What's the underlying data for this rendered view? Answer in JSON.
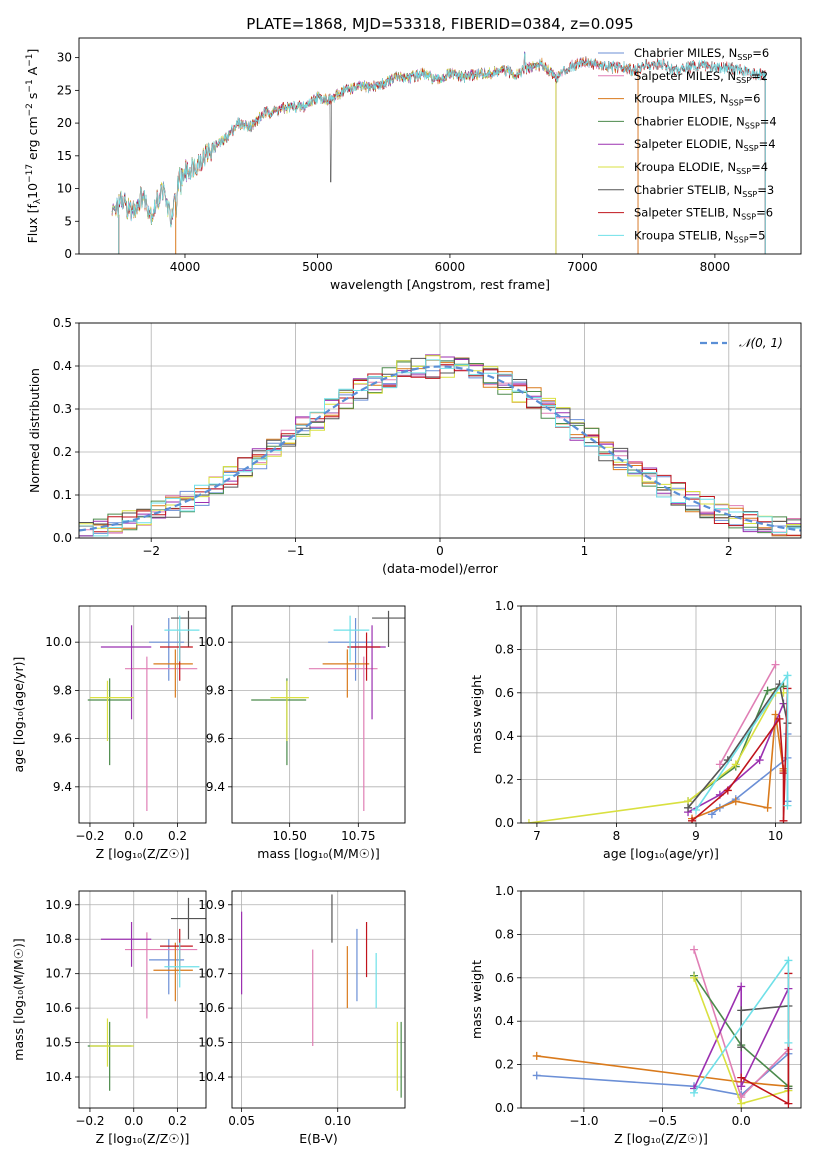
{
  "figure": {
    "title": "PLATE=1868, MJD=53318, FIBERID=0384, z=0.095"
  },
  "models": [
    {
      "name": "Chabrier MILES",
      "nssp": "6",
      "color": "#6b8fd6"
    },
    {
      "name": "Salpeter MILES",
      "nssp": "2",
      "color": "#e07fb5"
    },
    {
      "name": "Kroupa MILES",
      "nssp": "6",
      "color": "#d97a1c"
    },
    {
      "name": "Chabrier ELODIE",
      "nssp": "4",
      "color": "#4b8a4b"
    },
    {
      "name": "Salpeter ELODIE",
      "nssp": "4",
      "color": "#9b30b0"
    },
    {
      "name": "Kroupa ELODIE",
      "nssp": "4",
      "color": "#d9e040"
    },
    {
      "name": "Chabrier STELIB",
      "nssp": "3",
      "color": "#555555"
    },
    {
      "name": "Salpeter STELIB",
      "nssp": "6",
      "color": "#c0141c"
    },
    {
      "name": "Kroupa STELIB",
      "nssp": "5",
      "color": "#6fe0e8"
    }
  ],
  "chart_data": [
    {
      "id": "spectrum",
      "type": "line",
      "xlabel": "wavelength [Angstrom, rest frame]",
      "ylabel": "Flux [f",
      "xlim": [
        3200,
        8650
      ],
      "ylim": [
        0,
        33
      ],
      "xticks": [
        4000,
        5000,
        6000,
        7000,
        8000
      ],
      "yticks": [
        0,
        5,
        10,
        15,
        20,
        25,
        30
      ],
      "grid": false,
      "legend_position": "top-right",
      "x": [
        3450,
        3520,
        3600,
        3680,
        3750,
        3830,
        3900,
        3950,
        4000,
        4100,
        4200,
        4300,
        4400,
        4500,
        4600,
        4700,
        4800,
        4900,
        5000,
        5100,
        5200,
        5300,
        5400,
        5500,
        5600,
        5700,
        5800,
        5900,
        6000,
        6100,
        6200,
        6300,
        6400,
        6500,
        6600,
        6700,
        6800,
        6900,
        7000,
        7100,
        7200,
        7300,
        7400,
        7500,
        7600,
        7700,
        7800,
        7900,
        8000,
        8100,
        8200,
        8300,
        8400
      ],
      "flux": [
        6.0,
        8.0,
        6.5,
        9.0,
        6.0,
        10.0,
        5.0,
        11.5,
        12.5,
        14.0,
        16.0,
        17.5,
        20.0,
        19.5,
        21.5,
        22.0,
        22.5,
        22.5,
        24.0,
        23.5,
        25.0,
        25.5,
        25.5,
        26.0,
        27.0,
        27.0,
        27.5,
        26.5,
        27.5,
        27.0,
        27.5,
        27.5,
        28.0,
        27.5,
        28.5,
        29.0,
        27.0,
        28.5,
        29.5,
        29.0,
        28.5,
        28.5,
        28.0,
        29.0,
        29.0,
        28.0,
        28.5,
        29.0,
        28.5,
        28.5,
        28.0,
        27.5,
        27.5
      ],
      "model_end": {
        "MILES": 7420,
        "ELODIE": 6800,
        "STELIB": 8380
      }
    },
    {
      "id": "residuals",
      "type": "bar",
      "xlabel": "(data-model)/error",
      "ylabel": "Normed distribution",
      "xlim": [
        -2.5,
        2.5
      ],
      "ylim": [
        0,
        0.5
      ],
      "xticks": [
        -2,
        -1,
        0,
        1,
        2
      ],
      "yticks": [
        0.0,
        0.1,
        0.2,
        0.3,
        0.4,
        0.5
      ],
      "grid": true,
      "legend_position": "top-right",
      "legend_label": "𝒩(0, 1)",
      "bin_edges_start": -2.5,
      "bin_width": 0.1
    },
    {
      "id": "age-vs-Z",
      "type": "scatter",
      "xlabel": "Z [log₁₀(Z/Z☉)]",
      "ylabel": "age [log₁₀(age/yr)]",
      "xlim": [
        -0.25,
        0.33
      ],
      "ylim": [
        9.25,
        10.15
      ],
      "xticks": [
        -0.2,
        0.0,
        0.2
      ],
      "yticks": [
        9.4,
        9.6,
        9.8,
        10.0
      ],
      "grid": true,
      "points": [
        {
          "x": 0.16,
          "xerr": [
            0.09,
            0.07
          ],
          "y": 10.0,
          "yerr": [
            0.16,
            0.1
          ],
          "model": 0
        },
        {
          "x": 0.06,
          "xerr": [
            0.1,
            0.23
          ],
          "y": 9.89,
          "yerr": [
            0.59,
            0.05
          ],
          "model": 1
        },
        {
          "x": 0.19,
          "xerr": [
            0.1,
            0.08
          ],
          "y": 9.91,
          "yerr": [
            0.14,
            0.06
          ],
          "model": 2
        },
        {
          "x": -0.11,
          "xerr": [
            0.1,
            0.1
          ],
          "y": 9.76,
          "yerr": [
            0.27,
            0.09
          ],
          "model": 3
        },
        {
          "x": -0.01,
          "xerr": [
            0.14,
            0.09
          ],
          "y": 9.98,
          "yerr": [
            0.3,
            0.09
          ],
          "model": 4
        },
        {
          "x": -0.12,
          "xerr": [
            0.08,
            0.12
          ],
          "y": 9.77,
          "yerr": [
            0.18,
            0.07
          ],
          "model": 5
        },
        {
          "x": 0.25,
          "xerr": [
            0.08,
            0.1
          ],
          "y": 10.1,
          "yerr": [
            0.12,
            0.03
          ],
          "model": 6
        },
        {
          "x": 0.21,
          "xerr": [
            0.09,
            0.06
          ],
          "y": 9.98,
          "yerr": [
            0.14,
            0.06
          ],
          "model": 7
        },
        {
          "x": 0.21,
          "xerr": [
            0.07,
            0.09
          ],
          "y": 10.05,
          "yerr": [
            0.13,
            0.06
          ],
          "model": 8
        }
      ]
    },
    {
      "id": "age-vs-mass",
      "type": "scatter",
      "xlabel": "mass [log₁₀(M/M☉)]",
      "ylabel": "",
      "xlim": [
        10.29,
        10.92
      ],
      "ylim": [
        9.25,
        10.15
      ],
      "xticks": [
        10.5,
        10.75
      ],
      "yticks": [
        9.4,
        9.6,
        9.8,
        10.0
      ],
      "grid": true,
      "points": [
        {
          "x": 10.74,
          "xerr": [
            0.1,
            0.06
          ],
          "y": 10.0,
          "yerr": [
            0.16,
            0.1
          ],
          "model": 0
        },
        {
          "x": 10.77,
          "xerr": [
            0.2,
            0.05
          ],
          "y": 9.89,
          "yerr": [
            0.59,
            0.05
          ],
          "model": 1
        },
        {
          "x": 10.71,
          "xerr": [
            0.09,
            0.08
          ],
          "y": 9.91,
          "yerr": [
            0.14,
            0.06
          ],
          "model": 2
        },
        {
          "x": 10.49,
          "xerr": [
            0.13,
            0.07
          ],
          "y": 9.76,
          "yerr": [
            0.27,
            0.09
          ],
          "model": 3
        },
        {
          "x": 10.8,
          "xerr": [
            0.08,
            0.05
          ],
          "y": 9.98,
          "yerr": [
            0.3,
            0.09
          ],
          "model": 4
        },
        {
          "x": 10.49,
          "xerr": [
            0.06,
            0.08
          ],
          "y": 9.77,
          "yerr": [
            0.18,
            0.07
          ],
          "model": 5
        },
        {
          "x": 10.86,
          "xerr": [
            0.06,
            0.06
          ],
          "y": 10.1,
          "yerr": [
            0.12,
            0.03
          ],
          "model": 6
        },
        {
          "x": 10.78,
          "xerr": [
            0.07,
            0.05
          ],
          "y": 9.98,
          "yerr": [
            0.14,
            0.06
          ],
          "model": 7
        },
        {
          "x": 10.72,
          "xerr": [
            0.06,
            0.07
          ],
          "y": 10.05,
          "yerr": [
            0.13,
            0.06
          ],
          "model": 8
        }
      ]
    },
    {
      "id": "massweight-vs-age",
      "type": "line",
      "xlabel": "age [log₁₀(age/yr)]",
      "ylabel": "mass weight",
      "xlim": [
        6.8,
        10.32
      ],
      "ylim": [
        0,
        1.0
      ],
      "xticks": [
        7,
        8,
        9,
        10
      ],
      "yticks": [
        0.0,
        0.2,
        0.4,
        0.6,
        0.8,
        1.0
      ],
      "grid": true,
      "series": [
        {
          "model": 0,
          "x": [
            9.2,
            9.3,
            9.5,
            10.15,
            10.15,
            10.15
          ],
          "y": [
            0.04,
            0.07,
            0.11,
            0.3,
            0.41,
            0.1
          ]
        },
        {
          "model": 1,
          "x": [
            9.3,
            10.0
          ],
          "y": [
            0.27,
            0.73
          ]
        },
        {
          "model": 2,
          "x": [
            8.95,
            9.5,
            9.9,
            10.0,
            10.1,
            10.1
          ],
          "y": [
            0.02,
            0.1,
            0.07,
            0.5,
            0.24,
            0.25
          ]
        },
        {
          "model": 3,
          "x": [
            8.9,
            9.5,
            9.9,
            10.1
          ],
          "y": [
            0.1,
            0.26,
            0.61,
            0.63
          ]
        },
        {
          "model": 4,
          "x": [
            8.9,
            9.3,
            9.8,
            10.1
          ],
          "y": [
            0.05,
            0.13,
            0.29,
            0.55
          ]
        },
        {
          "model": 5,
          "x": [
            6.9,
            8.9,
            9.5,
            10.0,
            10.1
          ],
          "y": [
            0.0,
            0.1,
            0.27,
            0.6,
            0.6
          ]
        },
        {
          "model": 6,
          "x": [
            8.9,
            9.4,
            10.05,
            10.15
          ],
          "y": [
            0.07,
            0.29,
            0.64,
            0.46
          ]
        },
        {
          "model": 7,
          "x": [
            8.95,
            9.4,
            10.05,
            10.1,
            10.1,
            10.15
          ],
          "y": [
            0.01,
            0.15,
            0.48,
            0.23,
            0.01,
            0.62
          ]
        },
        {
          "model": 8,
          "x": [
            9.0,
            10.15,
            10.15
          ],
          "y": [
            0.06,
            0.68,
            0.08
          ]
        }
      ]
    },
    {
      "id": "mass-vs-Z",
      "type": "scatter",
      "xlabel": "Z [log₁₀(Z/Z☉)]",
      "ylabel": "mass [log₁₀(M/M☉)]",
      "xlim": [
        -0.25,
        0.33
      ],
      "ylim": [
        10.31,
        10.94
      ],
      "xticks": [
        -0.2,
        0.0,
        0.2
      ],
      "yticks": [
        10.4,
        10.5,
        10.6,
        10.7,
        10.8,
        10.9
      ],
      "grid": true,
      "points": [
        {
          "x": 0.16,
          "xerr": [
            0.09,
            0.07
          ],
          "y": 10.74,
          "yerr": [
            0.1,
            0.06
          ],
          "model": 0
        },
        {
          "x": 0.06,
          "xerr": [
            0.1,
            0.23
          ],
          "y": 10.77,
          "yerr": [
            0.2,
            0.05
          ],
          "model": 1
        },
        {
          "x": 0.19,
          "xerr": [
            0.1,
            0.08
          ],
          "y": 10.71,
          "yerr": [
            0.09,
            0.08
          ],
          "model": 2
        },
        {
          "x": -0.11,
          "xerr": [
            0.1,
            0.1
          ],
          "y": 10.49,
          "yerr": [
            0.13,
            0.07
          ],
          "model": 3
        },
        {
          "x": -0.01,
          "xerr": [
            0.14,
            0.09
          ],
          "y": 10.8,
          "yerr": [
            0.08,
            0.05
          ],
          "model": 4
        },
        {
          "x": -0.12,
          "xerr": [
            0.08,
            0.12
          ],
          "y": 10.49,
          "yerr": [
            0.06,
            0.08
          ],
          "model": 5
        },
        {
          "x": 0.25,
          "xerr": [
            0.08,
            0.1
          ],
          "y": 10.86,
          "yerr": [
            0.06,
            0.06
          ],
          "model": 6
        },
        {
          "x": 0.21,
          "xerr": [
            0.09,
            0.06
          ],
          "y": 10.78,
          "yerr": [
            0.07,
            0.05
          ],
          "model": 7
        },
        {
          "x": 0.21,
          "xerr": [
            0.07,
            0.09
          ],
          "y": 10.72,
          "yerr": [
            0.06,
            0.07
          ],
          "model": 8
        }
      ]
    },
    {
      "id": "mass-vs-ebv",
      "type": "scatter",
      "xlabel": "E(B-V)",
      "ylabel": "",
      "xlim": [
        0.045,
        0.135
      ],
      "ylim": [
        10.31,
        10.94
      ],
      "xticks": [
        0.05,
        0.1
      ],
      "yticks": [
        10.4,
        10.5,
        10.6,
        10.7,
        10.8,
        10.9
      ],
      "grid": true,
      "points": [
        {
          "x": 0.11,
          "y": 10.74,
          "yerr": [
            0.12,
            0.09
          ],
          "model": 0
        },
        {
          "x": 0.087,
          "y": 10.77,
          "yerr": [
            0.28,
            0.0
          ],
          "model": 1
        },
        {
          "x": 0.105,
          "y": 10.71,
          "yerr": [
            0.11,
            0.07
          ],
          "model": 2
        },
        {
          "x": 0.133,
          "y": 10.49,
          "yerr": [
            0.15,
            0.07
          ],
          "model": 3
        },
        {
          "x": 0.05,
          "y": 10.8,
          "yerr": [
            0.16,
            0.08
          ],
          "model": 4
        },
        {
          "x": 0.131,
          "y": 10.49,
          "yerr": [
            0.13,
            0.07
          ],
          "model": 5
        },
        {
          "x": 0.097,
          "y": 10.86,
          "yerr": [
            0.07,
            0.07
          ],
          "model": 6
        },
        {
          "x": 0.115,
          "y": 10.78,
          "yerr": [
            0.09,
            0.07
          ],
          "model": 7
        },
        {
          "x": 0.12,
          "y": 10.72,
          "yerr": [
            0.12,
            0.04
          ],
          "model": 8
        }
      ]
    },
    {
      "id": "massweight-vs-Z",
      "type": "line",
      "xlabel": "Z [log₁₀(Z/Z☉)]",
      "ylabel": "mass weight",
      "xlim": [
        -1.4,
        0.38
      ],
      "ylim": [
        0,
        1.0
      ],
      "xticks": [
        -1.0,
        -0.5,
        0.0
      ],
      "yticks": [
        0.0,
        0.2,
        0.4,
        0.6,
        0.8,
        1.0
      ],
      "grid": true,
      "series": [
        {
          "model": 0,
          "x": [
            -1.3,
            -0.3,
            0.0,
            0.3
          ],
          "y": [
            0.15,
            0.1,
            0.06,
            0.25
          ]
        },
        {
          "model": 1,
          "x": [
            -0.3,
            0.0,
            0.3
          ],
          "y": [
            0.73,
            0.05,
            0.27
          ]
        },
        {
          "model": 2,
          "x": [
            -1.3,
            0.0,
            0.3
          ],
          "y": [
            0.24,
            0.12,
            0.1
          ]
        },
        {
          "model": 3,
          "x": [
            -0.3,
            0.0,
            0.3
          ],
          "y": [
            0.61,
            0.29,
            0.1
          ]
        },
        {
          "model": 4,
          "x": [
            -0.3,
            0.0,
            0.0,
            0.3
          ],
          "y": [
            0.09,
            0.56,
            0.1,
            0.55
          ]
        },
        {
          "model": 5,
          "x": [
            -0.3,
            0.0,
            0.3
          ],
          "y": [
            0.6,
            0.02,
            0.08
          ]
        },
        {
          "model": 6,
          "x": [
            0.0,
            0.0,
            0.3,
            0.3
          ],
          "y": [
            0.28,
            0.45,
            0.47,
            0.09
          ]
        },
        {
          "model": 7,
          "x": [
            0.0,
            0.3,
            0.3
          ],
          "y": [
            0.14,
            0.02,
            0.62
          ]
        },
        {
          "model": 8,
          "x": [
            -0.3,
            0.3,
            0.3
          ],
          "y": [
            0.07,
            0.68,
            0.3
          ]
        }
      ]
    }
  ]
}
